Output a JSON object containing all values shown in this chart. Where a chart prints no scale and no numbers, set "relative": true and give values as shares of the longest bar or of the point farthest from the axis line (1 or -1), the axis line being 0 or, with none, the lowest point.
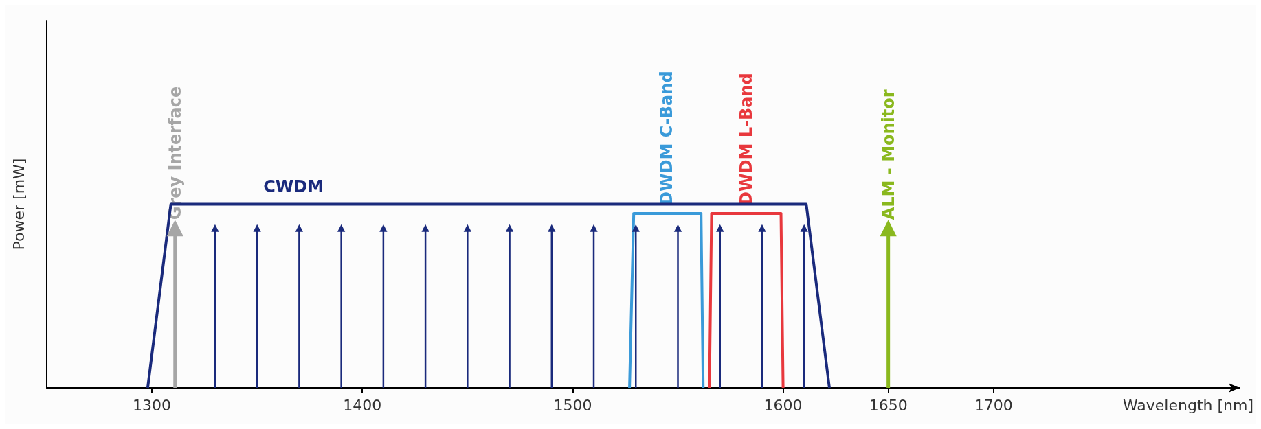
{
  "chart_data": {
    "type": "line",
    "xlabel": "Wavelength [nm]",
    "ylabel": "Power [mW]",
    "relative": true,
    "xlim": [
      1250,
      1817
    ],
    "xticks": [
      1300,
      1400,
      1500,
      1600,
      1650,
      1700
    ],
    "grid": false,
    "legend": false,
    "marker": "none",
    "line_style": "solid",
    "series": [
      {
        "name": "CWDM",
        "color": "#1a2a7c",
        "x": [
          1298,
          1309,
          1611,
          1622
        ],
        "values": [
          0,
          1,
          1,
          0
        ]
      },
      {
        "type": "lollipop",
        "marker": "triangle",
        "color": "#1a2a7c",
        "x": [
          1330,
          1350,
          1370,
          1390,
          1410,
          1430,
          1450,
          1470,
          1490,
          1510,
          1530,
          1550,
          1570,
          1590,
          1610
        ],
        "values": [
          0.87,
          0.87,
          0.87,
          0.87,
          0.87,
          0.87,
          0.87,
          0.87,
          0.87,
          0.87,
          0.87,
          0.87,
          0.87,
          0.87,
          0.87
        ]
      },
      {
        "name": "Grey Interface",
        "type": "lollipop",
        "marker": "triangle",
        "color": "#a6a6a6",
        "x": [
          1311
        ],
        "values": [
          0.87
        ]
      },
      {
        "name": "DWDM C-Band",
        "color": "#3a9ad9",
        "x": [
          1527,
          1529,
          1561,
          1562
        ],
        "values": [
          0,
          0.95,
          0.95,
          0
        ]
      },
      {
        "name": "DWDM L-Band",
        "color": "#e8383d",
        "x": [
          1565,
          1566,
          1599,
          1600
        ],
        "values": [
          0,
          0.95,
          0.95,
          0
        ]
      },
      {
        "name": "ALM - Monitor",
        "type": "lollipop",
        "marker": "triangle",
        "color": "#8ab81e",
        "x": [
          1650
        ],
        "values": [
          0.87
        ]
      }
    ]
  }
}
